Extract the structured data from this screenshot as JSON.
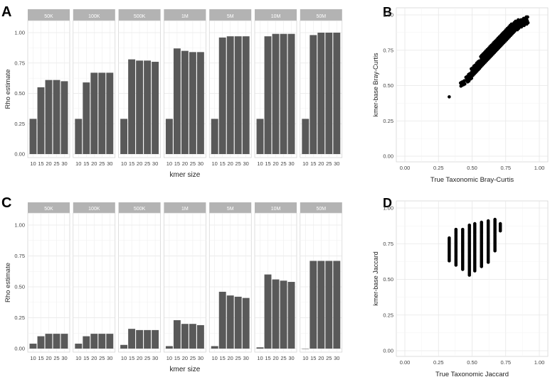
{
  "chart_data": [
    {
      "panel": "A",
      "type": "bar",
      "facet_strip": true,
      "ylabel": "Rho estimate",
      "xlabel": "kmer size",
      "ylim": [
        0,
        1
      ],
      "yticks": [
        0,
        0.25,
        0.5,
        0.75,
        1
      ],
      "ytick_labels": [
        "0.00",
        "0.25",
        "0.50",
        "0.75",
        "1.00"
      ],
      "categories": [
        "10",
        "15",
        "20",
        "25",
        "30"
      ],
      "facets": [
        {
          "name": "50K",
          "values": [
            0.29,
            0.55,
            0.61,
            0.61,
            0.6
          ]
        },
        {
          "name": "100K",
          "values": [
            0.29,
            0.59,
            0.67,
            0.67,
            0.67
          ]
        },
        {
          "name": "500K",
          "values": [
            0.29,
            0.78,
            0.77,
            0.77,
            0.76
          ]
        },
        {
          "name": "1M",
          "values": [
            0.29,
            0.87,
            0.85,
            0.84,
            0.84
          ]
        },
        {
          "name": "5M",
          "values": [
            0.29,
            0.96,
            0.97,
            0.97,
            0.97
          ]
        },
        {
          "name": "10M",
          "values": [
            0.29,
            0.97,
            0.99,
            0.99,
            0.99
          ]
        },
        {
          "name": "50M",
          "values": [
            0.29,
            0.98,
            1.0,
            1.0,
            1.0
          ]
        }
      ]
    },
    {
      "panel": "B",
      "type": "scatter",
      "xlabel": "True Taxonomic Bray-Curtis",
      "ylabel": "kmer-base Bray-Curtis",
      "xlim": [
        0,
        1
      ],
      "ylim": [
        0,
        1
      ],
      "xticks": [
        0,
        0.25,
        0.5,
        0.75,
        1
      ],
      "yticks": [
        0,
        0.25,
        0.5,
        0.75,
        1
      ],
      "xtick_labels": [
        "0.00",
        "0.25",
        "0.50",
        "0.75",
        "1.00"
      ],
      "ytick_labels": [
        "0.00",
        "0.25",
        "0.50",
        "0.75",
        "1.00"
      ],
      "x": [
        0.33,
        0.42,
        0.44,
        0.46,
        0.47,
        0.48,
        0.49,
        0.5,
        0.5,
        0.51,
        0.52,
        0.52,
        0.53,
        0.54,
        0.54,
        0.55,
        0.55,
        0.56,
        0.57,
        0.57,
        0.58,
        0.58,
        0.59,
        0.6,
        0.6,
        0.61,
        0.61,
        0.62,
        0.63,
        0.63,
        0.64,
        0.64,
        0.65,
        0.66,
        0.66,
        0.67,
        0.67,
        0.68,
        0.69,
        0.69,
        0.7,
        0.7,
        0.71,
        0.72,
        0.72,
        0.73,
        0.73,
        0.74,
        0.75,
        0.75,
        0.76,
        0.76,
        0.77,
        0.78,
        0.78,
        0.79,
        0.79,
        0.8,
        0.81,
        0.81,
        0.82,
        0.82,
        0.83,
        0.84,
        0.84,
        0.85,
        0.86,
        0.87,
        0.88,
        0.89,
        0.9,
        0.91
      ],
      "y": [
        0.42,
        0.51,
        0.52,
        0.55,
        0.54,
        0.57,
        0.56,
        0.58,
        0.61,
        0.59,
        0.6,
        0.63,
        0.61,
        0.62,
        0.65,
        0.63,
        0.66,
        0.65,
        0.66,
        0.69,
        0.67,
        0.7,
        0.68,
        0.69,
        0.72,
        0.7,
        0.73,
        0.71,
        0.72,
        0.75,
        0.73,
        0.76,
        0.74,
        0.75,
        0.78,
        0.76,
        0.79,
        0.77,
        0.78,
        0.81,
        0.79,
        0.82,
        0.8,
        0.81,
        0.84,
        0.82,
        0.85,
        0.83,
        0.84,
        0.87,
        0.85,
        0.88,
        0.86,
        0.87,
        0.9,
        0.88,
        0.91,
        0.89,
        0.9,
        0.92,
        0.91,
        0.93,
        0.92,
        0.92,
        0.94,
        0.93,
        0.94,
        0.94,
        0.95,
        0.95,
        0.96,
        0.96
      ]
    },
    {
      "panel": "C",
      "type": "bar",
      "facet_strip": true,
      "ylabel": "Rho estimate",
      "xlabel": "kmer size",
      "ylim": [
        0,
        1
      ],
      "yticks": [
        0,
        0.25,
        0.5,
        0.75,
        1
      ],
      "ytick_labels": [
        "0.00",
        "0.25",
        "0.50",
        "0.75",
        "1.00"
      ],
      "categories": [
        "10",
        "15",
        "20",
        "25",
        "30"
      ],
      "facets": [
        {
          "name": "50K",
          "values": [
            0.04,
            0.1,
            0.12,
            0.12,
            0.12
          ]
        },
        {
          "name": "100K",
          "values": [
            0.04,
            0.1,
            0.12,
            0.12,
            0.12
          ]
        },
        {
          "name": "500K",
          "values": [
            0.03,
            0.16,
            0.15,
            0.15,
            0.15
          ]
        },
        {
          "name": "1M",
          "values": [
            0.02,
            0.23,
            0.2,
            0.2,
            0.19
          ]
        },
        {
          "name": "5M",
          "values": [
            0.02,
            0.46,
            0.43,
            0.42,
            0.41
          ]
        },
        {
          "name": "10M",
          "values": [
            0.01,
            0.6,
            0.56,
            0.55,
            0.54
          ]
        },
        {
          "name": "50M",
          "values": [
            0.0,
            0.71,
            0.71,
            0.71,
            0.71
          ]
        }
      ]
    },
    {
      "panel": "D",
      "type": "scatter",
      "xlabel": "True Taxonomic Jaccard",
      "ylabel": "kmer-base Jaccard",
      "xlim": [
        0,
        1
      ],
      "ylim": [
        0,
        1
      ],
      "xticks": [
        0,
        0.25,
        0.5,
        0.75,
        1
      ],
      "yticks": [
        0,
        0.25,
        0.5,
        0.75,
        1
      ],
      "xtick_labels": [
        "0.00",
        "0.25",
        "0.50",
        "0.75",
        "1.00"
      ],
      "ytick_labels": [
        "0.00",
        "0.25",
        "0.50",
        "0.75",
        "1.00"
      ],
      "columns": [
        {
          "x": 0.33,
          "ymin": 0.63,
          "ymax": 0.79
        },
        {
          "x": 0.38,
          "ymin": 0.6,
          "ymax": 0.85
        },
        {
          "x": 0.43,
          "ymin": 0.57,
          "ymax": 0.85
        },
        {
          "x": 0.48,
          "ymin": 0.53,
          "ymax": 0.88
        },
        {
          "x": 0.52,
          "ymin": 0.56,
          "ymax": 0.89
        },
        {
          "x": 0.57,
          "ymin": 0.59,
          "ymax": 0.9
        },
        {
          "x": 0.62,
          "ymin": 0.62,
          "ymax": 0.91
        },
        {
          "x": 0.67,
          "ymin": 0.7,
          "ymax": 0.92
        },
        {
          "x": 0.71,
          "ymin": 0.84,
          "ymax": 0.89
        }
      ],
      "point_step": 0.01
    }
  ]
}
